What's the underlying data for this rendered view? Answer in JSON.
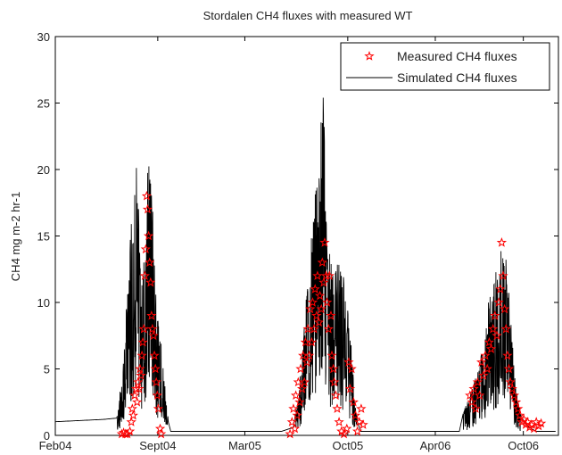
{
  "chart_data": {
    "type": "line",
    "title": "Stordalen CH4 fluxes with measured WT",
    "ylabel": "CH4 mg m-2 hr-1",
    "xlabel": "",
    "ylim": [
      0,
      30
    ],
    "xlim": [
      0,
      1046
    ],
    "x_unit": "days since Feb04",
    "yticks": [
      0,
      5,
      10,
      15,
      20,
      25,
      30
    ],
    "xticks": [
      {
        "label": "Feb04",
        "x": 0
      },
      {
        "label": "Sept04",
        "x": 213
      },
      {
        "label": "Mar05",
        "x": 394
      },
      {
        "label": "Oct05",
        "x": 608
      },
      {
        "label": "Apr06",
        "x": 790
      },
      {
        "label": "Oct06",
        "x": 973
      }
    ],
    "grid": false,
    "legend_position": "top-right",
    "series": [
      {
        "name": "Simulated CH4 fluxes",
        "style": "line",
        "color": "#000000",
        "envelope": [
          [
            -16,
            1.0
          ],
          [
            100,
            1.2
          ],
          [
            128,
            1.3
          ],
          [
            140,
            5
          ],
          [
            150,
            11
          ],
          [
            160,
            18
          ],
          [
            168,
            21
          ],
          [
            173,
            17
          ],
          [
            178,
            12
          ],
          [
            185,
            15
          ],
          [
            192,
            20
          ],
          [
            198,
            21
          ],
          [
            205,
            15
          ],
          [
            212,
            9
          ],
          [
            220,
            7
          ],
          [
            228,
            4
          ],
          [
            235,
            1
          ],
          [
            240,
            0.3
          ],
          [
            300,
            0.3
          ],
          [
            390,
            0.3
          ],
          [
            470,
            0.3
          ],
          [
            495,
            0.6
          ],
          [
            505,
            3
          ],
          [
            515,
            7
          ],
          [
            525,
            12
          ],
          [
            535,
            16
          ],
          [
            545,
            20
          ],
          [
            552,
            24
          ],
          [
            557,
            27
          ],
          [
            562,
            18
          ],
          [
            568,
            14
          ],
          [
            578,
            13.5
          ],
          [
            590,
            13
          ],
          [
            600,
            12
          ],
          [
            610,
            9
          ],
          [
            617,
            6
          ],
          [
            622,
            3
          ],
          [
            628,
            1
          ],
          [
            635,
            0.3
          ],
          [
            700,
            0.3
          ],
          [
            800,
            0.3
          ],
          [
            840,
            0.3
          ],
          [
            850,
            2
          ],
          [
            860,
            3
          ],
          [
            870,
            4
          ],
          [
            880,
            5
          ],
          [
            890,
            7
          ],
          [
            900,
            10
          ],
          [
            910,
            12
          ],
          [
            920,
            13.5
          ],
          [
            928,
            14
          ],
          [
            935,
            14
          ],
          [
            942,
            12
          ],
          [
            948,
            8
          ],
          [
            955,
            5
          ],
          [
            962,
            3
          ],
          [
            968,
            1.5
          ],
          [
            975,
            1
          ],
          [
            985,
            0.6
          ],
          [
            1000,
            0.3
          ],
          [
            1040,
            0.3
          ]
        ]
      },
      {
        "name": "Measured CH4 fluxes",
        "style": "markers",
        "marker": "star",
        "color": "#ff0000",
        "points": [
          [
            138,
            0.1
          ],
          [
            142,
            0.2
          ],
          [
            146,
            0.1
          ],
          [
            150,
            0.1
          ],
          [
            155,
            0.3
          ],
          [
            158,
            1.0
          ],
          [
            160,
            2.0
          ],
          [
            162,
            1.5
          ],
          [
            165,
            3.0
          ],
          [
            168,
            3.5
          ],
          [
            170,
            2.5
          ],
          [
            172,
            4.0
          ],
          [
            174,
            3.5
          ],
          [
            176,
            5.0
          ],
          [
            178,
            4.5
          ],
          [
            180,
            6.0
          ],
          [
            182,
            7.0
          ],
          [
            184,
            8.0
          ],
          [
            186,
            12.0
          ],
          [
            188,
            14.0
          ],
          [
            190,
            18.0
          ],
          [
            192,
            17.0
          ],
          [
            194,
            15.0
          ],
          [
            196,
            13.0
          ],
          [
            198,
            11.5
          ],
          [
            200,
            9.0
          ],
          [
            202,
            8.0
          ],
          [
            204,
            7.5
          ],
          [
            206,
            6.0
          ],
          [
            208,
            5.0
          ],
          [
            210,
            4.0
          ],
          [
            212,
            3.0
          ],
          [
            214,
            2.0
          ],
          [
            218,
            0.5
          ],
          [
            220,
            0.1
          ],
          [
            488,
            0.1
          ],
          [
            492,
            1.0
          ],
          [
            495,
            2.0
          ],
          [
            498,
            0.5
          ],
          [
            500,
            3.0
          ],
          [
            503,
            1.5
          ],
          [
            505,
            4.0
          ],
          [
            508,
            2.5
          ],
          [
            510,
            5.0
          ],
          [
            513,
            3.5
          ],
          [
            515,
            6.0
          ],
          [
            518,
            4.0
          ],
          [
            520,
            7.0
          ],
          [
            523,
            5.5
          ],
          [
            525,
            8.0
          ],
          [
            528,
            6.0
          ],
          [
            530,
            9.5
          ],
          [
            533,
            7.0
          ],
          [
            535,
            10.0
          ],
          [
            538,
            8.0
          ],
          [
            540,
            11.0
          ],
          [
            543,
            9.0
          ],
          [
            545,
            12.0
          ],
          [
            548,
            8.5
          ],
          [
            550,
            10.5
          ],
          [
            553,
            9.5
          ],
          [
            555,
            13.0
          ],
          [
            558,
            11.5
          ],
          [
            560,
            14.5
          ],
          [
            563,
            12.0
          ],
          [
            565,
            10.0
          ],
          [
            568,
            8.0
          ],
          [
            570,
            12.0
          ],
          [
            573,
            9.0
          ],
          [
            575,
            6.0
          ],
          [
            578,
            5.0
          ],
          [
            580,
            4.0
          ],
          [
            583,
            3.0
          ],
          [
            586,
            2.0
          ],
          [
            590,
            1.0
          ],
          [
            595,
            0.3
          ],
          [
            600,
            0.1
          ],
          [
            606,
            0.5
          ],
          [
            610,
            5.5
          ],
          [
            613,
            3.5
          ],
          [
            616,
            5.0
          ],
          [
            620,
            2.5
          ],
          [
            624,
            1.5
          ],
          [
            628,
            0.3
          ],
          [
            632,
            1.0
          ],
          [
            636,
            2.0
          ],
          [
            640,
            0.8
          ],
          [
            862,
            3.0
          ],
          [
            866,
            2.5
          ],
          [
            870,
            3.5
          ],
          [
            874,
            2.0
          ],
          [
            878,
            4.0
          ],
          [
            882,
            3.0
          ],
          [
            886,
            5.5
          ],
          [
            890,
            4.5
          ],
          [
            894,
            6.0
          ],
          [
            898,
            5.0
          ],
          [
            902,
            7.0
          ],
          [
            906,
            6.5
          ],
          [
            910,
            8.0
          ],
          [
            914,
            9.0
          ],
          [
            918,
            7.5
          ],
          [
            922,
            10.0
          ],
          [
            925,
            11.0
          ],
          [
            928,
            14.5
          ],
          [
            931,
            12.0
          ],
          [
            934,
            9.5
          ],
          [
            937,
            8.0
          ],
          [
            940,
            6.0
          ],
          [
            943,
            5.0
          ],
          [
            946,
            4.0
          ],
          [
            950,
            3.5
          ],
          [
            954,
            3.0
          ],
          [
            958,
            2.5
          ],
          [
            962,
            2.0
          ],
          [
            966,
            1.5
          ],
          [
            970,
            1.0
          ],
          [
            974,
            1.2
          ],
          [
            978,
            0.8
          ],
          [
            982,
            1.0
          ],
          [
            986,
            0.6
          ],
          [
            990,
            0.8
          ],
          [
            995,
            0.5
          ],
          [
            1000,
            1.0
          ],
          [
            1005,
            0.7
          ],
          [
            1010,
            0.9
          ]
        ]
      }
    ]
  }
}
